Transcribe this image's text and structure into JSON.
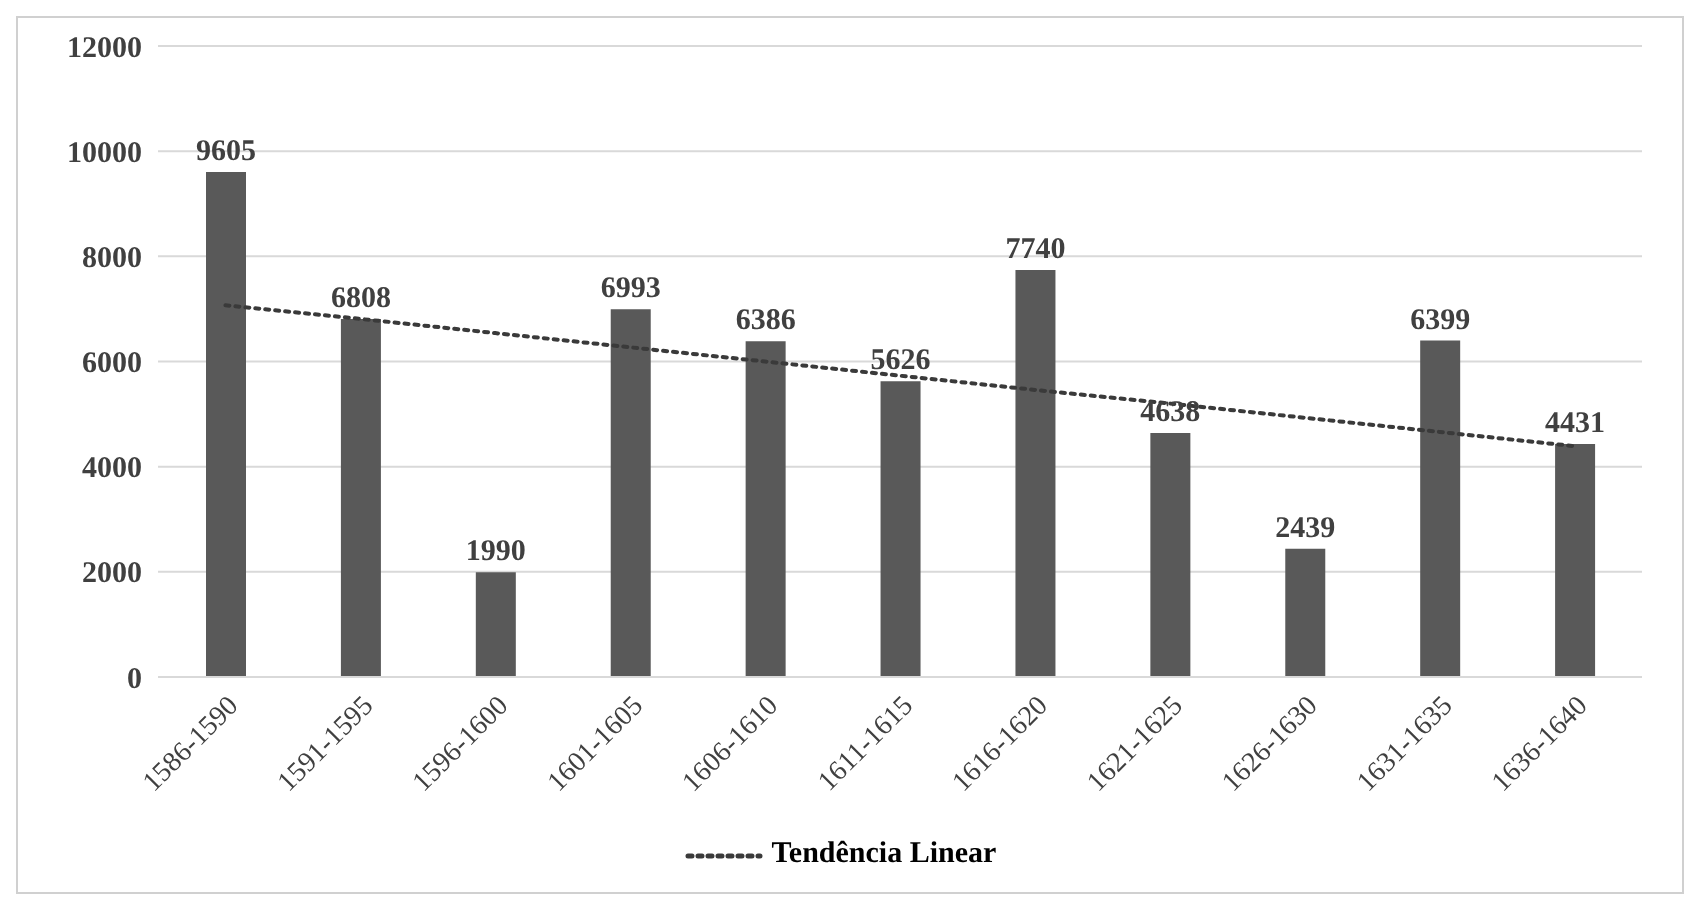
{
  "chart_data": {
    "type": "bar",
    "categories": [
      "1586-1590",
      "1591-1595",
      "1596-1600",
      "1601-1605",
      "1606-1610",
      "1611-1615",
      "1616-1620",
      "1621-1625",
      "1626-1630",
      "1631-1635",
      "1636-1640"
    ],
    "series": [
      {
        "color": "#595959",
        "values": [
          9605,
          6808,
          1990,
          6993,
          6386,
          5626,
          7740,
          4638,
          2439,
          6399,
          4431
        ],
        "value_labels": [
          "9605",
          "6808",
          "1990",
          "6993",
          "6386",
          "5626",
          "7740",
          "4638",
          "2439",
          "6399",
          "4431"
        ]
      },
      {
        "type": "line",
        "name": "Tendência Linear",
        "color": "#3a3a3a",
        "line_style": "dotted",
        "values": [
          7070,
          6810,
          6540,
          6270,
          6000,
          5730,
          5460,
          5200,
          4930,
          4660,
          4390
        ]
      }
    ],
    "ylim": [
      0,
      12000
    ],
    "yticks": [
      0,
      2000,
      4000,
      6000,
      8000,
      10000,
      12000
    ],
    "grid": "y",
    "legend": "bottom"
  }
}
